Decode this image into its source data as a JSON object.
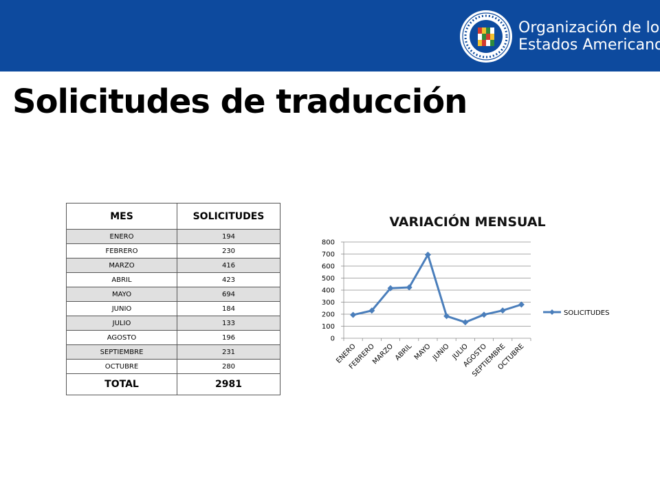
{
  "header": {
    "org_line1": "Organización de los",
    "org_line2": "Estados Americanos",
    "bg_color": "#0d4a9e",
    "seal_icon": "oas-seal-icon"
  },
  "slide_title": "Solicitudes de traducción",
  "table": {
    "headers": [
      "MES",
      "SOLICITUDES"
    ],
    "rows": [
      {
        "mes": "ENERO",
        "solicitudes": "194"
      },
      {
        "mes": "FEBRERO",
        "solicitudes": "230"
      },
      {
        "mes": "MARZO",
        "solicitudes": "416"
      },
      {
        "mes": "ABRIL",
        "solicitudes": "423"
      },
      {
        "mes": "MAYO",
        "solicitudes": "694"
      },
      {
        "mes": "JUNIO",
        "solicitudes": "184"
      },
      {
        "mes": "JULIO",
        "solicitudes": "133"
      },
      {
        "mes": "AGOSTO",
        "solicitudes": "196"
      },
      {
        "mes": "SEPTIEMBRE",
        "solicitudes": "231"
      },
      {
        "mes": "OCTUBRE",
        "solicitudes": "280"
      }
    ],
    "total_label": "TOTAL",
    "total_value": "2981"
  },
  "chart_data": {
    "type": "line",
    "title": "VARIACIÓN MENSUAL",
    "categories": [
      "ENERO",
      "FEBRERO",
      "MARZO",
      "ABRIL",
      "MAYO",
      "JUNIO",
      "JULIO",
      "AGOSTO",
      "SEPTIEMBRE",
      "OCTUBRE"
    ],
    "series": [
      {
        "name": "SOLICITUDES",
        "values": [
          194,
          230,
          416,
          423,
          694,
          184,
          133,
          196,
          231,
          280
        ],
        "color": "#4a7ebb",
        "marker": "diamond"
      }
    ],
    "ylim": [
      0,
      800
    ],
    "yticks": [
      0,
      100,
      200,
      300,
      400,
      500,
      600,
      700,
      800
    ],
    "grid": true,
    "legend": "right",
    "xlabel": "",
    "ylabel": ""
  }
}
